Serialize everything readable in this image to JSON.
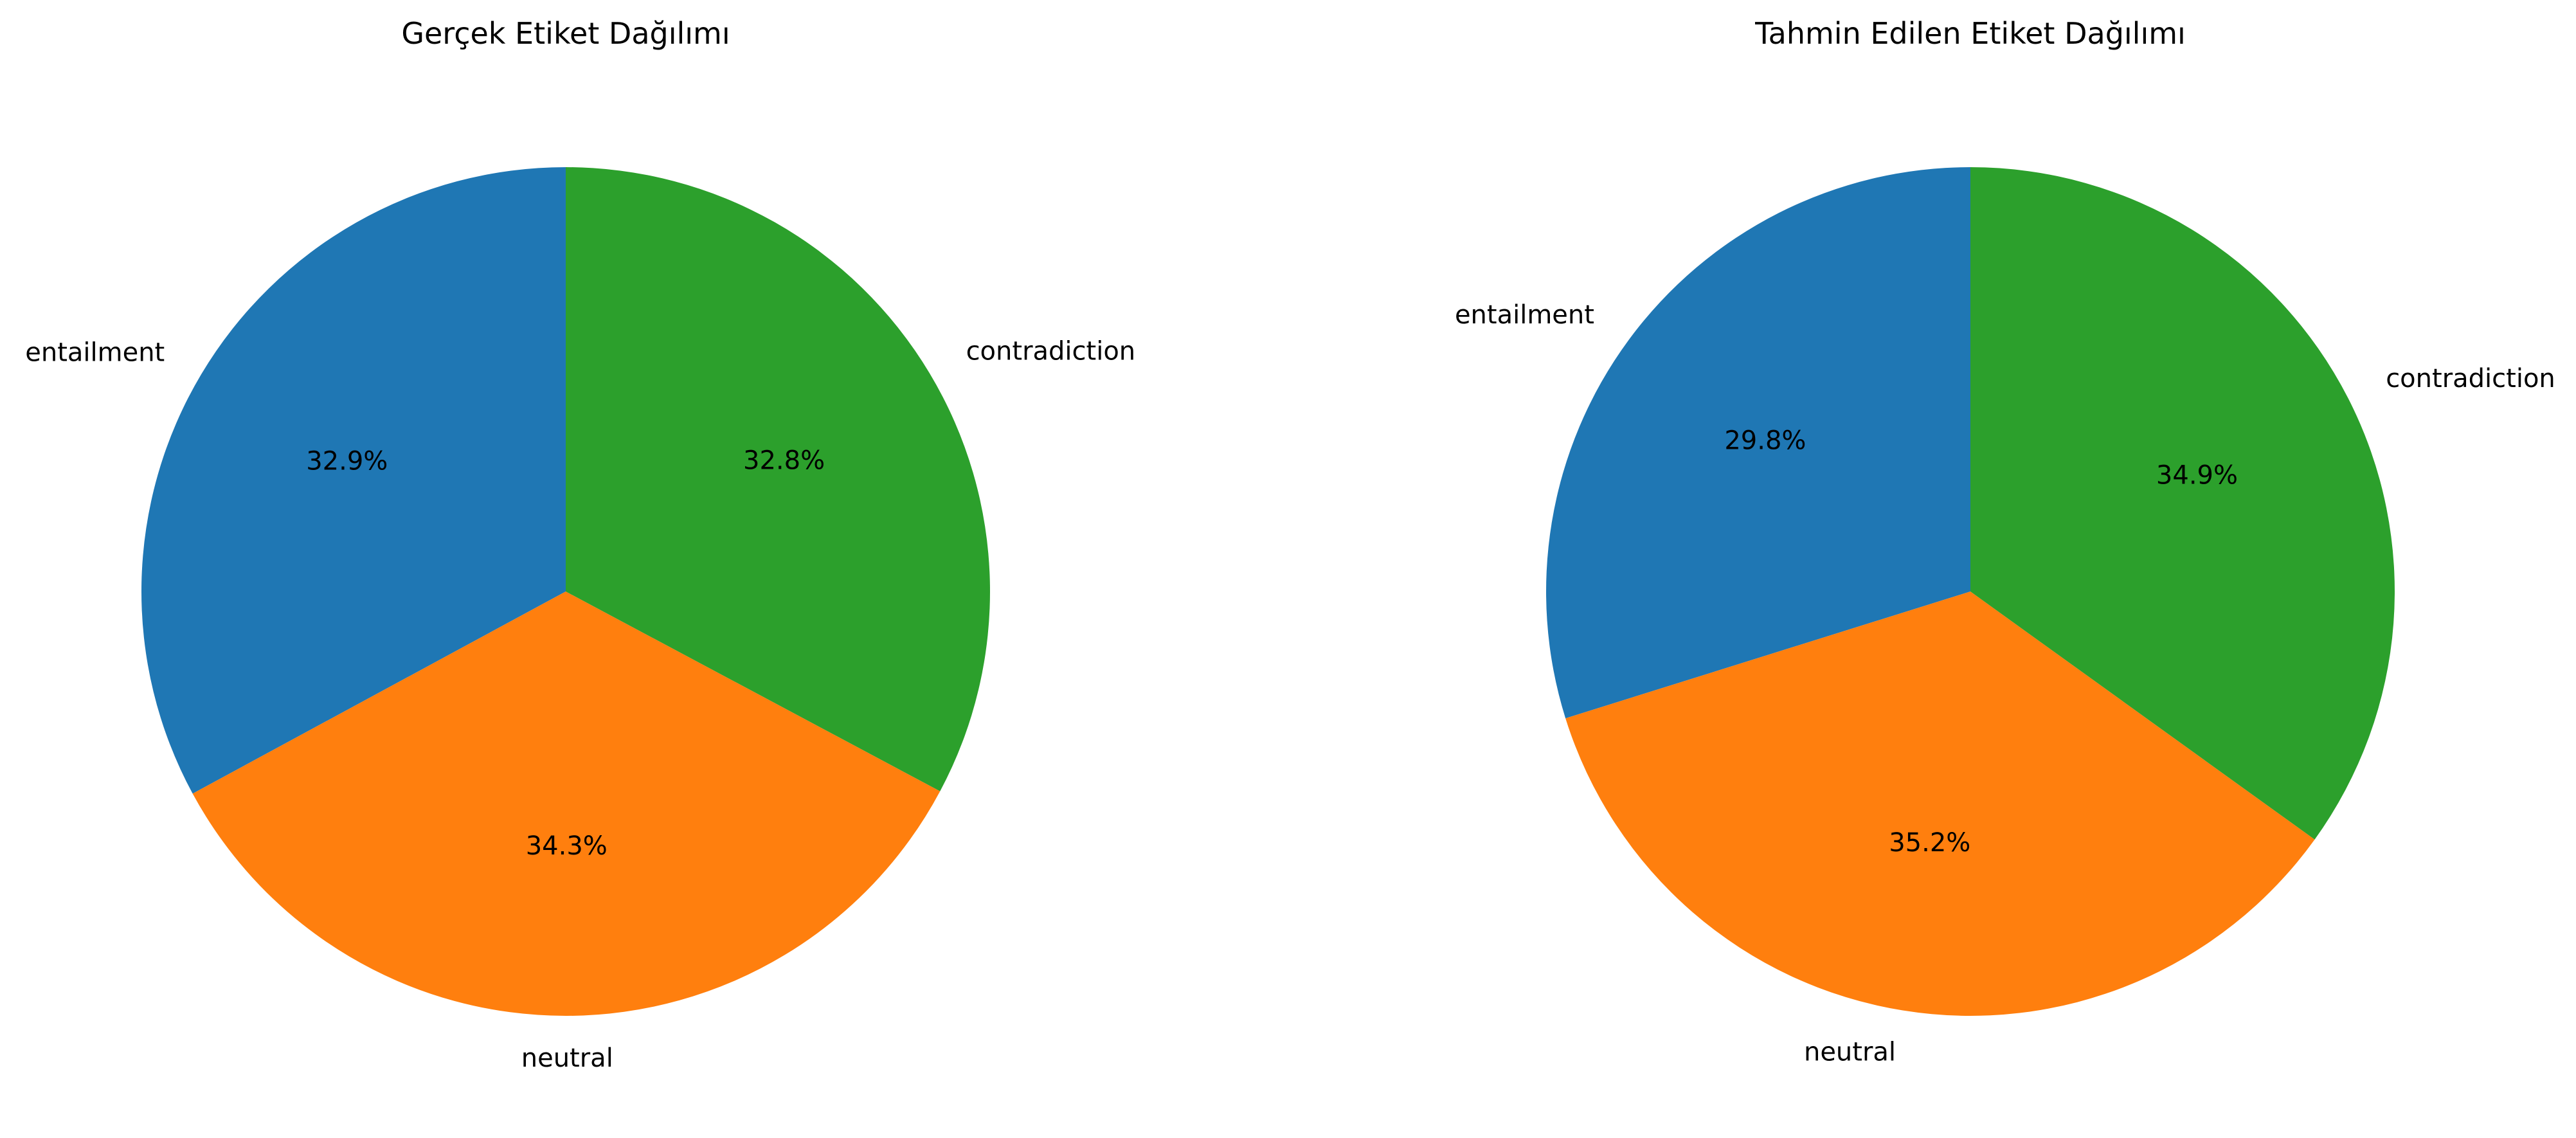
{
  "chart_data": [
    {
      "type": "pie",
      "title": "Gerçek Etiket Dağılımı",
      "categories": [
        "entailment",
        "neutral",
        "contradiction"
      ],
      "values": [
        32.9,
        34.3,
        32.8
      ],
      "value_labels": [
        "32.9%",
        "34.3%",
        "32.8%"
      ],
      "colors": [
        "#1f77b4",
        "#ff7f0e",
        "#2ca02c"
      ],
      "start_angle_deg": 90,
      "direction": "counterclockwise",
      "legend": "none"
    },
    {
      "type": "pie",
      "title": "Tahmin Edilen Etiket Dağılımı",
      "categories": [
        "entailment",
        "neutral",
        "contradiction"
      ],
      "values": [
        29.8,
        35.2,
        34.9
      ],
      "value_labels": [
        "29.8%",
        "35.2%",
        "34.9%"
      ],
      "colors": [
        "#1f77b4",
        "#ff7f0e",
        "#2ca02c"
      ],
      "start_angle_deg": 90,
      "direction": "counterclockwise",
      "legend": "none"
    }
  ]
}
